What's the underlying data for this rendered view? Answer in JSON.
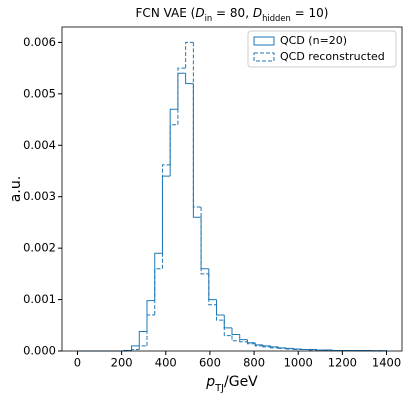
{
  "chart_data": {
    "type": "histogram",
    "title": [
      "FCN VAE (",
      "D",
      "in",
      " = 80, ",
      "D",
      "hidden",
      " = 10)"
    ],
    "xlabel": [
      "p",
      "TJ",
      "/GeV"
    ],
    "ylabel": "a.u.",
    "bins": [
      0,
      35,
      70,
      105,
      140,
      175,
      210,
      245,
      280,
      315,
      350,
      385,
      420,
      455,
      490,
      525,
      560,
      595,
      630,
      665,
      700,
      735,
      770,
      805,
      840,
      875,
      910,
      945,
      980,
      1015,
      1050,
      1085,
      1120,
      1155,
      1190,
      1225,
      1260,
      1295,
      1330,
      1365,
      1400
    ],
    "series": [
      {
        "name": "QCD (n=20)",
        "color": "#1f77b4",
        "linestyle": "solid",
        "values": [
          0,
          0,
          0,
          0,
          0,
          0,
          1e-05,
          0.0001,
          0.00038,
          0.00098,
          0.0019,
          0.0034,
          0.0047,
          0.0054,
          0.0052,
          0.0026,
          0.0016,
          0.001,
          0.0007,
          0.00045,
          0.00032,
          0.00022,
          0.00016,
          0.00012,
          0.0001,
          8e-05,
          6e-05,
          5e-05,
          4e-05,
          3e-05,
          3e-05,
          2e-05,
          2e-05,
          1e-05,
          1e-05,
          1e-05,
          1e-05,
          1e-05,
          5e-06,
          5e-06
        ]
      },
      {
        "name": "QCD reconstructed",
        "color": "#1f77b4",
        "linestyle": "dashed",
        "values": [
          0,
          0,
          0,
          0,
          0,
          0,
          0,
          3e-05,
          0.0001,
          0.0007,
          0.0016,
          0.00362,
          0.0044,
          0.0055,
          0.006,
          0.0028,
          0.0015,
          0.0009,
          0.0006,
          0.0003,
          0.0002,
          0.00018,
          0.00014,
          0.0001,
          8e-05,
          6e-05,
          5e-05,
          4e-05,
          3e-05,
          3e-05,
          2e-05,
          2e-05,
          1e-05,
          1e-05,
          1e-05,
          1e-05,
          5e-06,
          5e-06,
          5e-06,
          5e-06
        ]
      }
    ],
    "xlim": [
      -70,
      1470
    ],
    "ylim": [
      0,
      0.0063
    ],
    "xticks": [
      0,
      200,
      400,
      600,
      800,
      1000,
      1200,
      1400
    ],
    "yticks": [
      {
        "value": 0,
        "label": "0.000"
      },
      {
        "value": 0.001,
        "label": "0.001"
      },
      {
        "value": 0.002,
        "label": "0.002"
      },
      {
        "value": 0.003,
        "label": "0.003"
      },
      {
        "value": 0.004,
        "label": "0.004"
      },
      {
        "value": 0.005,
        "label": "0.005"
      },
      {
        "value": 0.006,
        "label": "0.006"
      }
    ],
    "legend": "upper right"
  }
}
